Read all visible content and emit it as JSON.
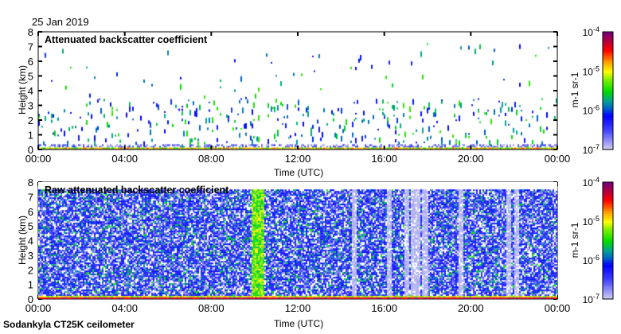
{
  "date": "25 Jan 2019",
  "footer": "Sodankyla CT25K ceilometer",
  "chart_data": [
    {
      "type": "heatmap",
      "title": "Attenuated backscatter coefficient",
      "xlabel": "Time (UTC)",
      "ylabel": "Height (km)",
      "xticks": [
        "00:00",
        "04:00",
        "08:00",
        "12:00",
        "16:00",
        "20:00",
        "00:00"
      ],
      "xlim_hours": [
        0,
        24
      ],
      "yticks": [
        "0",
        "1",
        "2",
        "3",
        "4",
        "5",
        "6",
        "7",
        "8"
      ],
      "ylim": [
        0,
        8
      ],
      "colorbar": {
        "label": "m-1 sr-1",
        "ticks": [
          "10-7",
          "10-6",
          "10-5",
          "10-4"
        ],
        "scale": "log",
        "range": [
          1e-07,
          0.0001
        ]
      },
      "description_data": {
        "surface_layer_top_km": 0.3,
        "sparse_cloud_max_km": 7.3,
        "noise_density": 0.02
      }
    },
    {
      "type": "heatmap",
      "title": "Raw attenuated backscatter coefficient",
      "xlabel": "Time (UTC)",
      "ylabel": "Height (km)",
      "xticks": [
        "00:00",
        "04:00",
        "08:00",
        "12:00",
        "16:00",
        "20:00",
        "00:00"
      ],
      "xlim_hours": [
        0,
        24
      ],
      "yticks": [
        "0",
        "1",
        "2",
        "3",
        "4",
        "5",
        "6",
        "7",
        "8"
      ],
      "ylim": [
        0,
        8
      ],
      "colorbar": {
        "label": "m-1 sr-1",
        "ticks": [
          "10-7",
          "10-6",
          "10-5",
          "10-4"
        ],
        "scale": "log",
        "range": [
          1e-07,
          0.0001
        ]
      },
      "description_data": {
        "data_top_km": 7.5,
        "enhanced_band_hours": [
          9.8,
          10.4
        ],
        "gap_hours": [
          14.6,
          16.2,
          17.0,
          17.3,
          17.5,
          17.9,
          19.5,
          21.7,
          22.1
        ]
      }
    }
  ],
  "colors": {
    "low": "#d8d8f0",
    "blue": "#0000ff",
    "teal": "#00a0a0",
    "green": "#00e000",
    "yellow": "#ffff00",
    "orange": "#ff9000",
    "red": "#ff0000",
    "high": "#800080"
  }
}
